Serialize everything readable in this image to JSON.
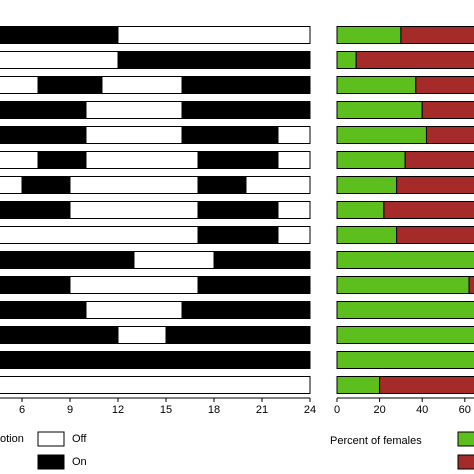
{
  "chart_data": [
    {
      "type": "schedule",
      "xlim": [
        0,
        24
      ],
      "xticks": [
        6,
        9,
        12,
        15,
        18,
        21,
        24
      ],
      "legend_title": "otion",
      "series": [
        {
          "name": "Off",
          "color": "#ffffff",
          "intervals": [
            [
              [
                12,
                24
              ]
            ],
            [
              [
                0,
                12
              ]
            ],
            [
              [
                0,
                7
              ],
              [
                11,
                16
              ]
            ],
            [
              [
                10,
                16
              ]
            ],
            [
              [
                10,
                16
              ],
              [
                22,
                24
              ]
            ],
            [
              [
                0,
                7
              ],
              [
                10,
                17
              ],
              [
                22,
                24
              ]
            ],
            [
              [
                0,
                6
              ],
              [
                9,
                17
              ],
              [
                20,
                24
              ]
            ],
            [
              [
                9,
                17
              ],
              [
                22,
                24
              ]
            ],
            [
              [
                0,
                17
              ],
              [
                22,
                24
              ]
            ],
            [
              [
                13,
                18
              ]
            ],
            [
              [
                9,
                17
              ]
            ],
            [
              [
                10,
                16
              ]
            ],
            [
              [
                12,
                15
              ]
            ],
            [],
            [
              [
                0,
                24
              ]
            ]
          ]
        },
        {
          "name": "On",
          "color": "#000000",
          "intervals": [
            [
              [
                0,
                12
              ]
            ],
            [
              [
                12,
                24
              ]
            ],
            [
              [
                7,
                11
              ],
              [
                16,
                24
              ]
            ],
            [
              [
                0,
                10
              ],
              [
                16,
                24
              ]
            ],
            [
              [
                0,
                10
              ],
              [
                16,
                22
              ]
            ],
            [
              [
                7,
                10
              ],
              [
                17,
                22
              ]
            ],
            [
              [
                6,
                9
              ],
              [
                17,
                20
              ]
            ],
            [
              [
                0,
                9
              ],
              [
                17,
                22
              ]
            ],
            [
              [
                17,
                22
              ]
            ],
            [
              [
                0,
                13
              ],
              [
                18,
                24
              ]
            ],
            [
              [
                0,
                9
              ],
              [
                17,
                24
              ]
            ],
            [
              [
                0,
                10
              ],
              [
                16,
                24
              ]
            ],
            [
              [
                0,
                12
              ],
              [
                15,
                24
              ]
            ],
            [
              [
                0,
                24
              ]
            ],
            []
          ]
        }
      ]
    },
    {
      "type": "stacked_barh",
      "x_label": "Percent of females",
      "xlim": [
        0,
        100
      ],
      "xticks": [
        0,
        20,
        40,
        60
      ],
      "series": [
        {
          "color": "#5cbf1e",
          "values": [
            30,
            9,
            37,
            40,
            42,
            32,
            28,
            22,
            28,
            100,
            62,
            100,
            100,
            100,
            20
          ]
        },
        {
          "color": "#a52a2a",
          "values": [
            70,
            91,
            63,
            60,
            58,
            68,
            72,
            78,
            72,
            0,
            38,
            0,
            0,
            0,
            80
          ]
        }
      ]
    }
  ]
}
